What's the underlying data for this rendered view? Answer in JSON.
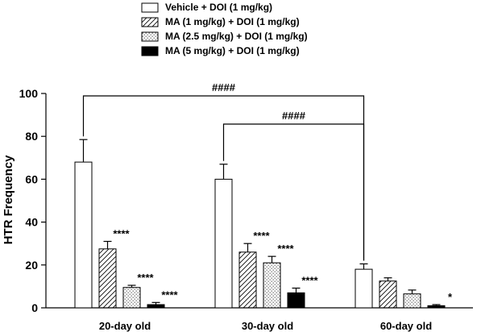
{
  "chart_data": {
    "type": "bar",
    "title": "",
    "xlabel": "",
    "ylabel": "HTR Frequency",
    "ylim": [
      0,
      100
    ],
    "yticks": [
      0,
      20,
      40,
      60,
      80,
      100
    ],
    "categories": [
      "20-day old",
      "30-day old",
      "60-day old"
    ],
    "legend_position": "top",
    "series": [
      {
        "name": "Vehicle + DOI (1 mg/kg)",
        "pattern": "empty",
        "values": [
          68,
          60,
          18
        ],
        "errors": [
          10.5,
          7,
          2.5
        ],
        "annotations": [
          "",
          "",
          ""
        ]
      },
      {
        "name": "MA (1 mg/kg) + DOI (1 mg/kg)",
        "pattern": "hatch",
        "values": [
          27.5,
          26,
          12.5
        ],
        "errors": [
          3.5,
          4,
          1.5
        ],
        "annotations": [
          "****",
          "****",
          ""
        ]
      },
      {
        "name": "MA (2.5 mg/kg) + DOI (1 mg/kg)",
        "pattern": "dots",
        "values": [
          9.5,
          21,
          6.5
        ],
        "errors": [
          1,
          3,
          1.8
        ],
        "annotations": [
          "****",
          "****",
          ""
        ]
      },
      {
        "name": "MA (5 mg/kg) + DOI (1 mg/kg)",
        "pattern": "solid",
        "values": [
          1.5,
          7,
          1
        ],
        "errors": [
          1,
          2.2,
          0.5
        ],
        "annotations": [
          "****",
          "****",
          "*"
        ]
      }
    ],
    "comparisons": [
      {
        "label": "####",
        "from_group": 0,
        "to_group": 2
      },
      {
        "label": "####",
        "from_group": 1,
        "to_group": 2
      }
    ],
    "colors": {
      "bar_stroke": "#000000",
      "solid_fill": "#000000",
      "background": "#ffffff"
    }
  }
}
